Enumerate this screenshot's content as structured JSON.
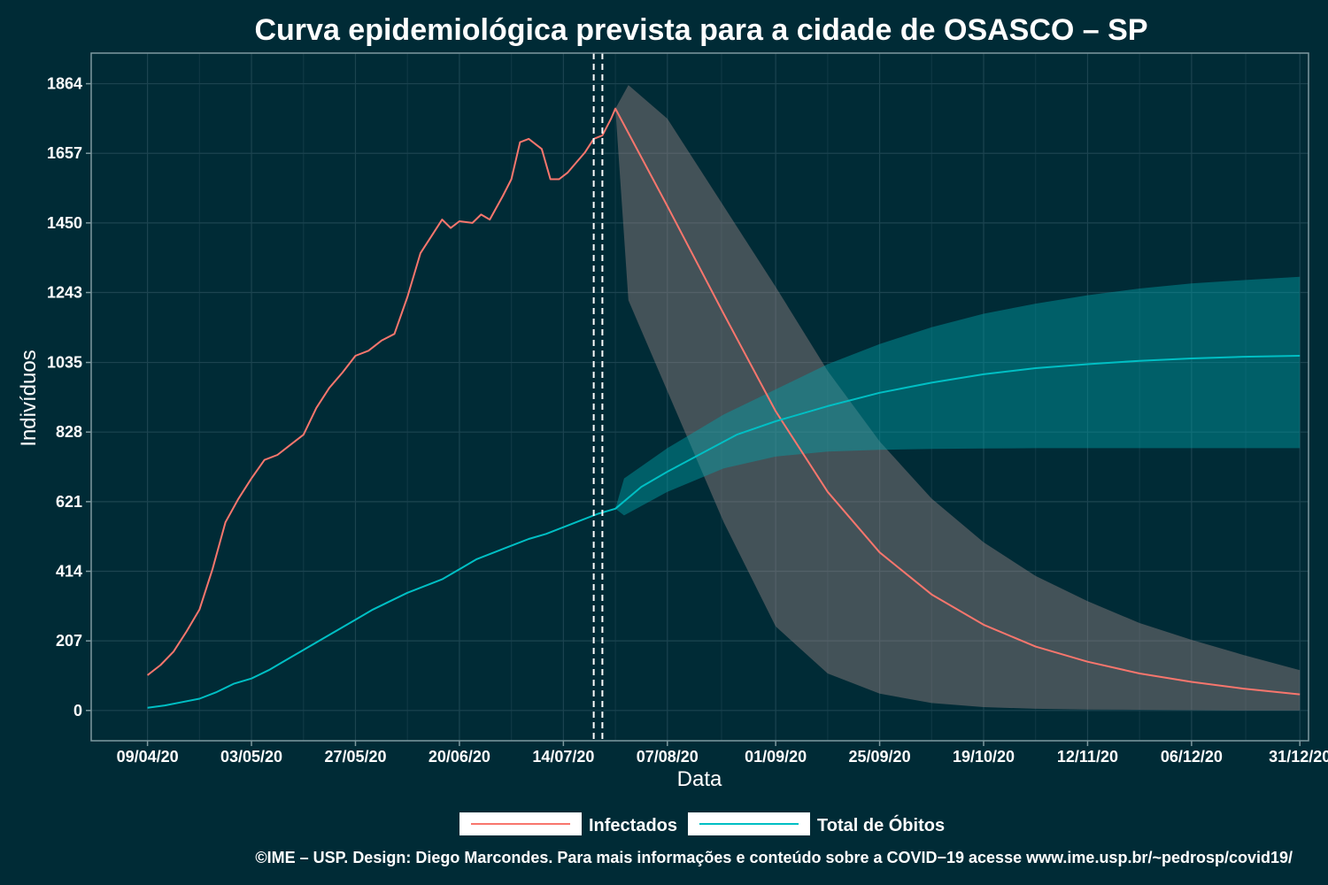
{
  "chart_data": {
    "type": "line",
    "title": "Curva epidemiológica prevista para a cidade de OSASCO – SP",
    "xlabel": "Data",
    "ylabel": "Indivíduos",
    "caption": "©IME – USP. Design: Diego Marcondes. Para mais informações e conteúdo sobre a COVID−19 acesse www.ime.usp.br/~pedrosp/covid19/",
    "x_ticks": [
      "09/04/20",
      "03/05/20",
      "27/05/20",
      "20/06/20",
      "14/07/20",
      "07/08/20",
      "01/09/20",
      "25/09/20",
      "19/10/20",
      "12/11/20",
      "06/12/20",
      "31/12/20"
    ],
    "y_ticks": [
      "0",
      "207",
      "414",
      "621",
      "828",
      "1035",
      "1243",
      "1450",
      "1657",
      "1864"
    ],
    "xlim": [
      "2020-03-27",
      "2021-01-02"
    ],
    "ylim": [
      -90,
      1955
    ],
    "grid": true,
    "legend_position": "bottom",
    "vertical_lines": [
      "2020-07-21",
      "2020-07-23"
    ],
    "series": [
      {
        "name": "Infectados",
        "color": "#f8766d",
        "observed": [
          [
            "2020-04-09",
            105
          ],
          [
            "2020-04-12",
            135
          ],
          [
            "2020-04-15",
            175
          ],
          [
            "2020-04-18",
            235
          ],
          [
            "2020-04-21",
            300
          ],
          [
            "2020-04-24",
            420
          ],
          [
            "2020-04-27",
            560
          ],
          [
            "2020-04-30",
            630
          ],
          [
            "2020-05-03",
            690
          ],
          [
            "2020-05-06",
            745
          ],
          [
            "2020-05-09",
            760
          ],
          [
            "2020-05-12",
            790
          ],
          [
            "2020-05-15",
            820
          ],
          [
            "2020-05-18",
            900
          ],
          [
            "2020-05-21",
            960
          ],
          [
            "2020-05-24",
            1005
          ],
          [
            "2020-05-27",
            1055
          ],
          [
            "2020-05-30",
            1070
          ],
          [
            "2020-06-02",
            1100
          ],
          [
            "2020-06-05",
            1120
          ],
          [
            "2020-06-08",
            1230
          ],
          [
            "2020-06-11",
            1360
          ],
          [
            "2020-06-14",
            1420
          ],
          [
            "2020-06-16",
            1460
          ],
          [
            "2020-06-18",
            1435
          ],
          [
            "2020-06-20",
            1455
          ],
          [
            "2020-06-23",
            1450
          ],
          [
            "2020-06-25",
            1475
          ],
          [
            "2020-06-27",
            1460
          ],
          [
            "2020-06-30",
            1530
          ],
          [
            "2020-07-02",
            1580
          ],
          [
            "2020-07-04",
            1690
          ],
          [
            "2020-07-06",
            1700
          ],
          [
            "2020-07-09",
            1670
          ],
          [
            "2020-07-11",
            1580
          ],
          [
            "2020-07-13",
            1580
          ],
          [
            "2020-07-15",
            1600
          ],
          [
            "2020-07-17",
            1630
          ],
          [
            "2020-07-19",
            1660
          ],
          [
            "2020-07-21",
            1700
          ],
          [
            "2020-07-23",
            1710
          ],
          [
            "2020-07-25",
            1760
          ],
          [
            "2020-07-26",
            1790
          ]
        ],
        "forecast": [
          [
            "2020-07-26",
            1790
          ],
          [
            "2020-08-07",
            1500
          ],
          [
            "2020-08-20",
            1180
          ],
          [
            "2020-09-01",
            890
          ],
          [
            "2020-09-13",
            650
          ],
          [
            "2020-09-25",
            470
          ],
          [
            "2020-10-07",
            345
          ],
          [
            "2020-10-19",
            255
          ],
          [
            "2020-10-31",
            190
          ],
          [
            "2020-11-12",
            145
          ],
          [
            "2020-11-24",
            110
          ],
          [
            "2020-12-06",
            85
          ],
          [
            "2020-12-18",
            65
          ],
          [
            "2020-12-31",
            48
          ]
        ],
        "band_upper": [
          [
            "2020-07-26",
            1790
          ],
          [
            "2020-07-29",
            1860
          ],
          [
            "2020-08-07",
            1760
          ],
          [
            "2020-08-20",
            1500
          ],
          [
            "2020-09-01",
            1260
          ],
          [
            "2020-09-13",
            1010
          ],
          [
            "2020-09-25",
            800
          ],
          [
            "2020-10-07",
            630
          ],
          [
            "2020-10-19",
            500
          ],
          [
            "2020-10-31",
            400
          ],
          [
            "2020-11-12",
            325
          ],
          [
            "2020-11-24",
            260
          ],
          [
            "2020-12-06",
            210
          ],
          [
            "2020-12-18",
            165
          ],
          [
            "2020-12-31",
            120
          ]
        ],
        "band_lower": [
          [
            "2020-07-26",
            1790
          ],
          [
            "2020-07-29",
            1220
          ],
          [
            "2020-08-07",
            950
          ],
          [
            "2020-08-20",
            560
          ],
          [
            "2020-09-01",
            250
          ],
          [
            "2020-09-13",
            110
          ],
          [
            "2020-09-25",
            50
          ],
          [
            "2020-10-07",
            22
          ],
          [
            "2020-10-19",
            10
          ],
          [
            "2020-10-31",
            5
          ],
          [
            "2020-11-12",
            3
          ],
          [
            "2020-11-24",
            2
          ],
          [
            "2020-12-06",
            1
          ],
          [
            "2020-12-18",
            0
          ],
          [
            "2020-12-31",
            0
          ]
        ]
      },
      {
        "name": "Total de Óbitos",
        "color": "#00bfc4",
        "observed": [
          [
            "2020-04-09",
            8
          ],
          [
            "2020-04-13",
            15
          ],
          [
            "2020-04-17",
            25
          ],
          [
            "2020-04-21",
            35
          ],
          [
            "2020-04-25",
            55
          ],
          [
            "2020-04-29",
            80
          ],
          [
            "2020-05-03",
            95
          ],
          [
            "2020-05-07",
            120
          ],
          [
            "2020-05-11",
            150
          ],
          [
            "2020-05-15",
            180
          ],
          [
            "2020-05-19",
            210
          ],
          [
            "2020-05-23",
            240
          ],
          [
            "2020-05-27",
            270
          ],
          [
            "2020-05-31",
            300
          ],
          [
            "2020-06-04",
            325
          ],
          [
            "2020-06-08",
            350
          ],
          [
            "2020-06-12",
            370
          ],
          [
            "2020-06-16",
            390
          ],
          [
            "2020-06-20",
            420
          ],
          [
            "2020-06-24",
            450
          ],
          [
            "2020-06-28",
            470
          ],
          [
            "2020-07-02",
            490
          ],
          [
            "2020-07-06",
            510
          ],
          [
            "2020-07-10",
            525
          ],
          [
            "2020-07-14",
            545
          ],
          [
            "2020-07-18",
            565
          ],
          [
            "2020-07-22",
            585
          ],
          [
            "2020-07-26",
            600
          ]
        ],
        "forecast": [
          [
            "2020-07-26",
            600
          ],
          [
            "2020-08-01",
            665
          ],
          [
            "2020-08-07",
            710
          ],
          [
            "2020-08-15",
            765
          ],
          [
            "2020-08-23",
            820
          ],
          [
            "2020-09-01",
            860
          ],
          [
            "2020-09-13",
            905
          ],
          [
            "2020-09-25",
            945
          ],
          [
            "2020-10-07",
            975
          ],
          [
            "2020-10-19",
            1000
          ],
          [
            "2020-10-31",
            1018
          ],
          [
            "2020-11-12",
            1030
          ],
          [
            "2020-11-24",
            1040
          ],
          [
            "2020-12-06",
            1047
          ],
          [
            "2020-12-18",
            1052
          ],
          [
            "2020-12-31",
            1055
          ]
        ],
        "band_upper": [
          [
            "2020-07-26",
            600
          ],
          [
            "2020-07-28",
            690
          ],
          [
            "2020-08-07",
            780
          ],
          [
            "2020-08-20",
            880
          ],
          [
            "2020-09-01",
            955
          ],
          [
            "2020-09-13",
            1030
          ],
          [
            "2020-09-25",
            1090
          ],
          [
            "2020-10-07",
            1140
          ],
          [
            "2020-10-19",
            1180
          ],
          [
            "2020-10-31",
            1210
          ],
          [
            "2020-11-12",
            1235
          ],
          [
            "2020-11-24",
            1255
          ],
          [
            "2020-12-06",
            1270
          ],
          [
            "2020-12-18",
            1280
          ],
          [
            "2020-12-31",
            1290
          ]
        ],
        "band_lower": [
          [
            "2020-07-26",
            600
          ],
          [
            "2020-07-28",
            580
          ],
          [
            "2020-08-07",
            650
          ],
          [
            "2020-08-20",
            720
          ],
          [
            "2020-09-01",
            755
          ],
          [
            "2020-09-13",
            770
          ],
          [
            "2020-09-25",
            775
          ],
          [
            "2020-10-07",
            778
          ],
          [
            "2020-10-19",
            779
          ],
          [
            "2020-10-31",
            780
          ],
          [
            "2020-11-12",
            780
          ],
          [
            "2020-11-24",
            780
          ],
          [
            "2020-12-06",
            780
          ],
          [
            "2020-12-18",
            780
          ],
          [
            "2020-12-31",
            780
          ]
        ]
      }
    ]
  }
}
